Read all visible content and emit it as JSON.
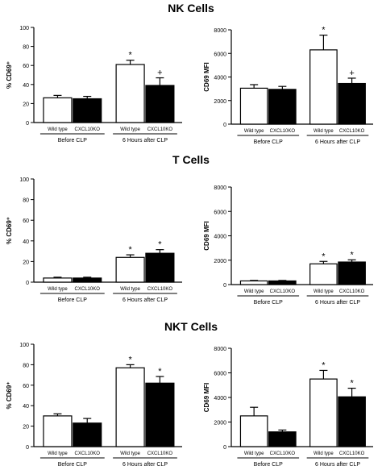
{
  "sections": [
    {
      "title": "NK Cells"
    },
    {
      "title": "T Cells"
    },
    {
      "title": "NKT Cells"
    }
  ],
  "chart_data": [
    {
      "type": "bar",
      "ylabel": "% CD69⁺",
      "ylim": [
        0,
        100
      ],
      "yticks": [
        0,
        20,
        40,
        60,
        80,
        100
      ],
      "categories": [
        "Wild type",
        "CXCL10KO",
        "Wild type",
        "CXCL10KO"
      ],
      "values": [
        26,
        25,
        61,
        39
      ],
      "errors": [
        2.5,
        2.5,
        4.5,
        8
      ],
      "fill": [
        "#ffffff",
        "#000000",
        "#ffffff",
        "#000000"
      ],
      "annotations": [
        "",
        "",
        "*",
        "+"
      ],
      "groups": [
        "Before CLP",
        "6 Hours after CLP"
      ],
      "grid": false
    },
    {
      "type": "bar",
      "ylabel": "CD69 MFI",
      "ylim": [
        0,
        8000
      ],
      "yticks": [
        0,
        2000,
        4000,
        6000,
        8000
      ],
      "categories": [
        "Wild type",
        "CXCL10KO",
        "Wild type",
        "CXCL10KO"
      ],
      "values": [
        3050,
        2950,
        6300,
        3450
      ],
      "errors": [
        300,
        250,
        1250,
        450
      ],
      "fill": [
        "#ffffff",
        "#000000",
        "#ffffff",
        "#000000"
      ],
      "annotations": [
        "",
        "",
        "*",
        "+"
      ],
      "groups": [
        "Before CLP",
        "6 Hours after CLP"
      ],
      "grid": false
    },
    {
      "type": "bar",
      "ylabel": "% CD69⁺",
      "ylim": [
        0,
        100
      ],
      "yticks": [
        0,
        20,
        40,
        60,
        80,
        100
      ],
      "categories": [
        "Wild type",
        "CXCL10KO",
        "Wild type",
        "CXCL10KO"
      ],
      "values": [
        4,
        4,
        24,
        28
      ],
      "errors": [
        0.8,
        0.8,
        2.5,
        3.5
      ],
      "fill": [
        "#ffffff",
        "#000000",
        "#ffffff",
        "#000000"
      ],
      "annotations": [
        "",
        "",
        "*",
        "*"
      ],
      "groups": [
        "Before CLP",
        "6 Hours after CLP"
      ],
      "grid": false
    },
    {
      "type": "bar",
      "ylabel": "CD69 MFI",
      "ylim": [
        0,
        8000
      ],
      "yticks": [
        0,
        2000,
        4000,
        6000,
        8000
      ],
      "categories": [
        "Wild type",
        "CXCL10KO",
        "Wild type",
        "CXCL10KO"
      ],
      "values": [
        300,
        300,
        1700,
        1850
      ],
      "errors": [
        40,
        40,
        200,
        180
      ],
      "fill": [
        "#ffffff",
        "#000000",
        "#ffffff",
        "#000000"
      ],
      "annotations": [
        "",
        "",
        "*",
        "*"
      ],
      "groups": [
        "Before CLP",
        "6 Hours after CLP"
      ],
      "grid": false
    },
    {
      "type": "bar",
      "ylabel": "% CD69⁺",
      "ylim": [
        0,
        100
      ],
      "yticks": [
        0,
        20,
        40,
        60,
        80,
        100
      ],
      "categories": [
        "Wild type",
        "CXCL10KO",
        "Wild type",
        "CXCL10KO"
      ],
      "values": [
        30,
        23,
        77,
        62
      ],
      "errors": [
        2,
        4.5,
        3,
        6.5
      ],
      "fill": [
        "#ffffff",
        "#000000",
        "#ffffff",
        "#000000"
      ],
      "annotations": [
        "",
        "",
        "*",
        "*"
      ],
      "groups": [
        "Before CLP",
        "6 Hours after CLP"
      ],
      "grid": false
    },
    {
      "type": "bar",
      "ylabel": "CD69 MFI",
      "ylim": [
        0,
        8000
      ],
      "yticks": [
        0,
        2000,
        4000,
        6000,
        8000
      ],
      "categories": [
        "Wild type",
        "CXCL10KO",
        "Wild type",
        "CXCL10KO"
      ],
      "values": [
        2500,
        1200,
        5500,
        4050
      ],
      "errors": [
        700,
        150,
        700,
        700
      ],
      "fill": [
        "#ffffff",
        "#000000",
        "#ffffff",
        "#000000"
      ],
      "annotations": [
        "",
        "",
        "*",
        "*"
      ],
      "groups": [
        "Before CLP",
        "6 Hours after CLP"
      ],
      "grid": false
    }
  ]
}
